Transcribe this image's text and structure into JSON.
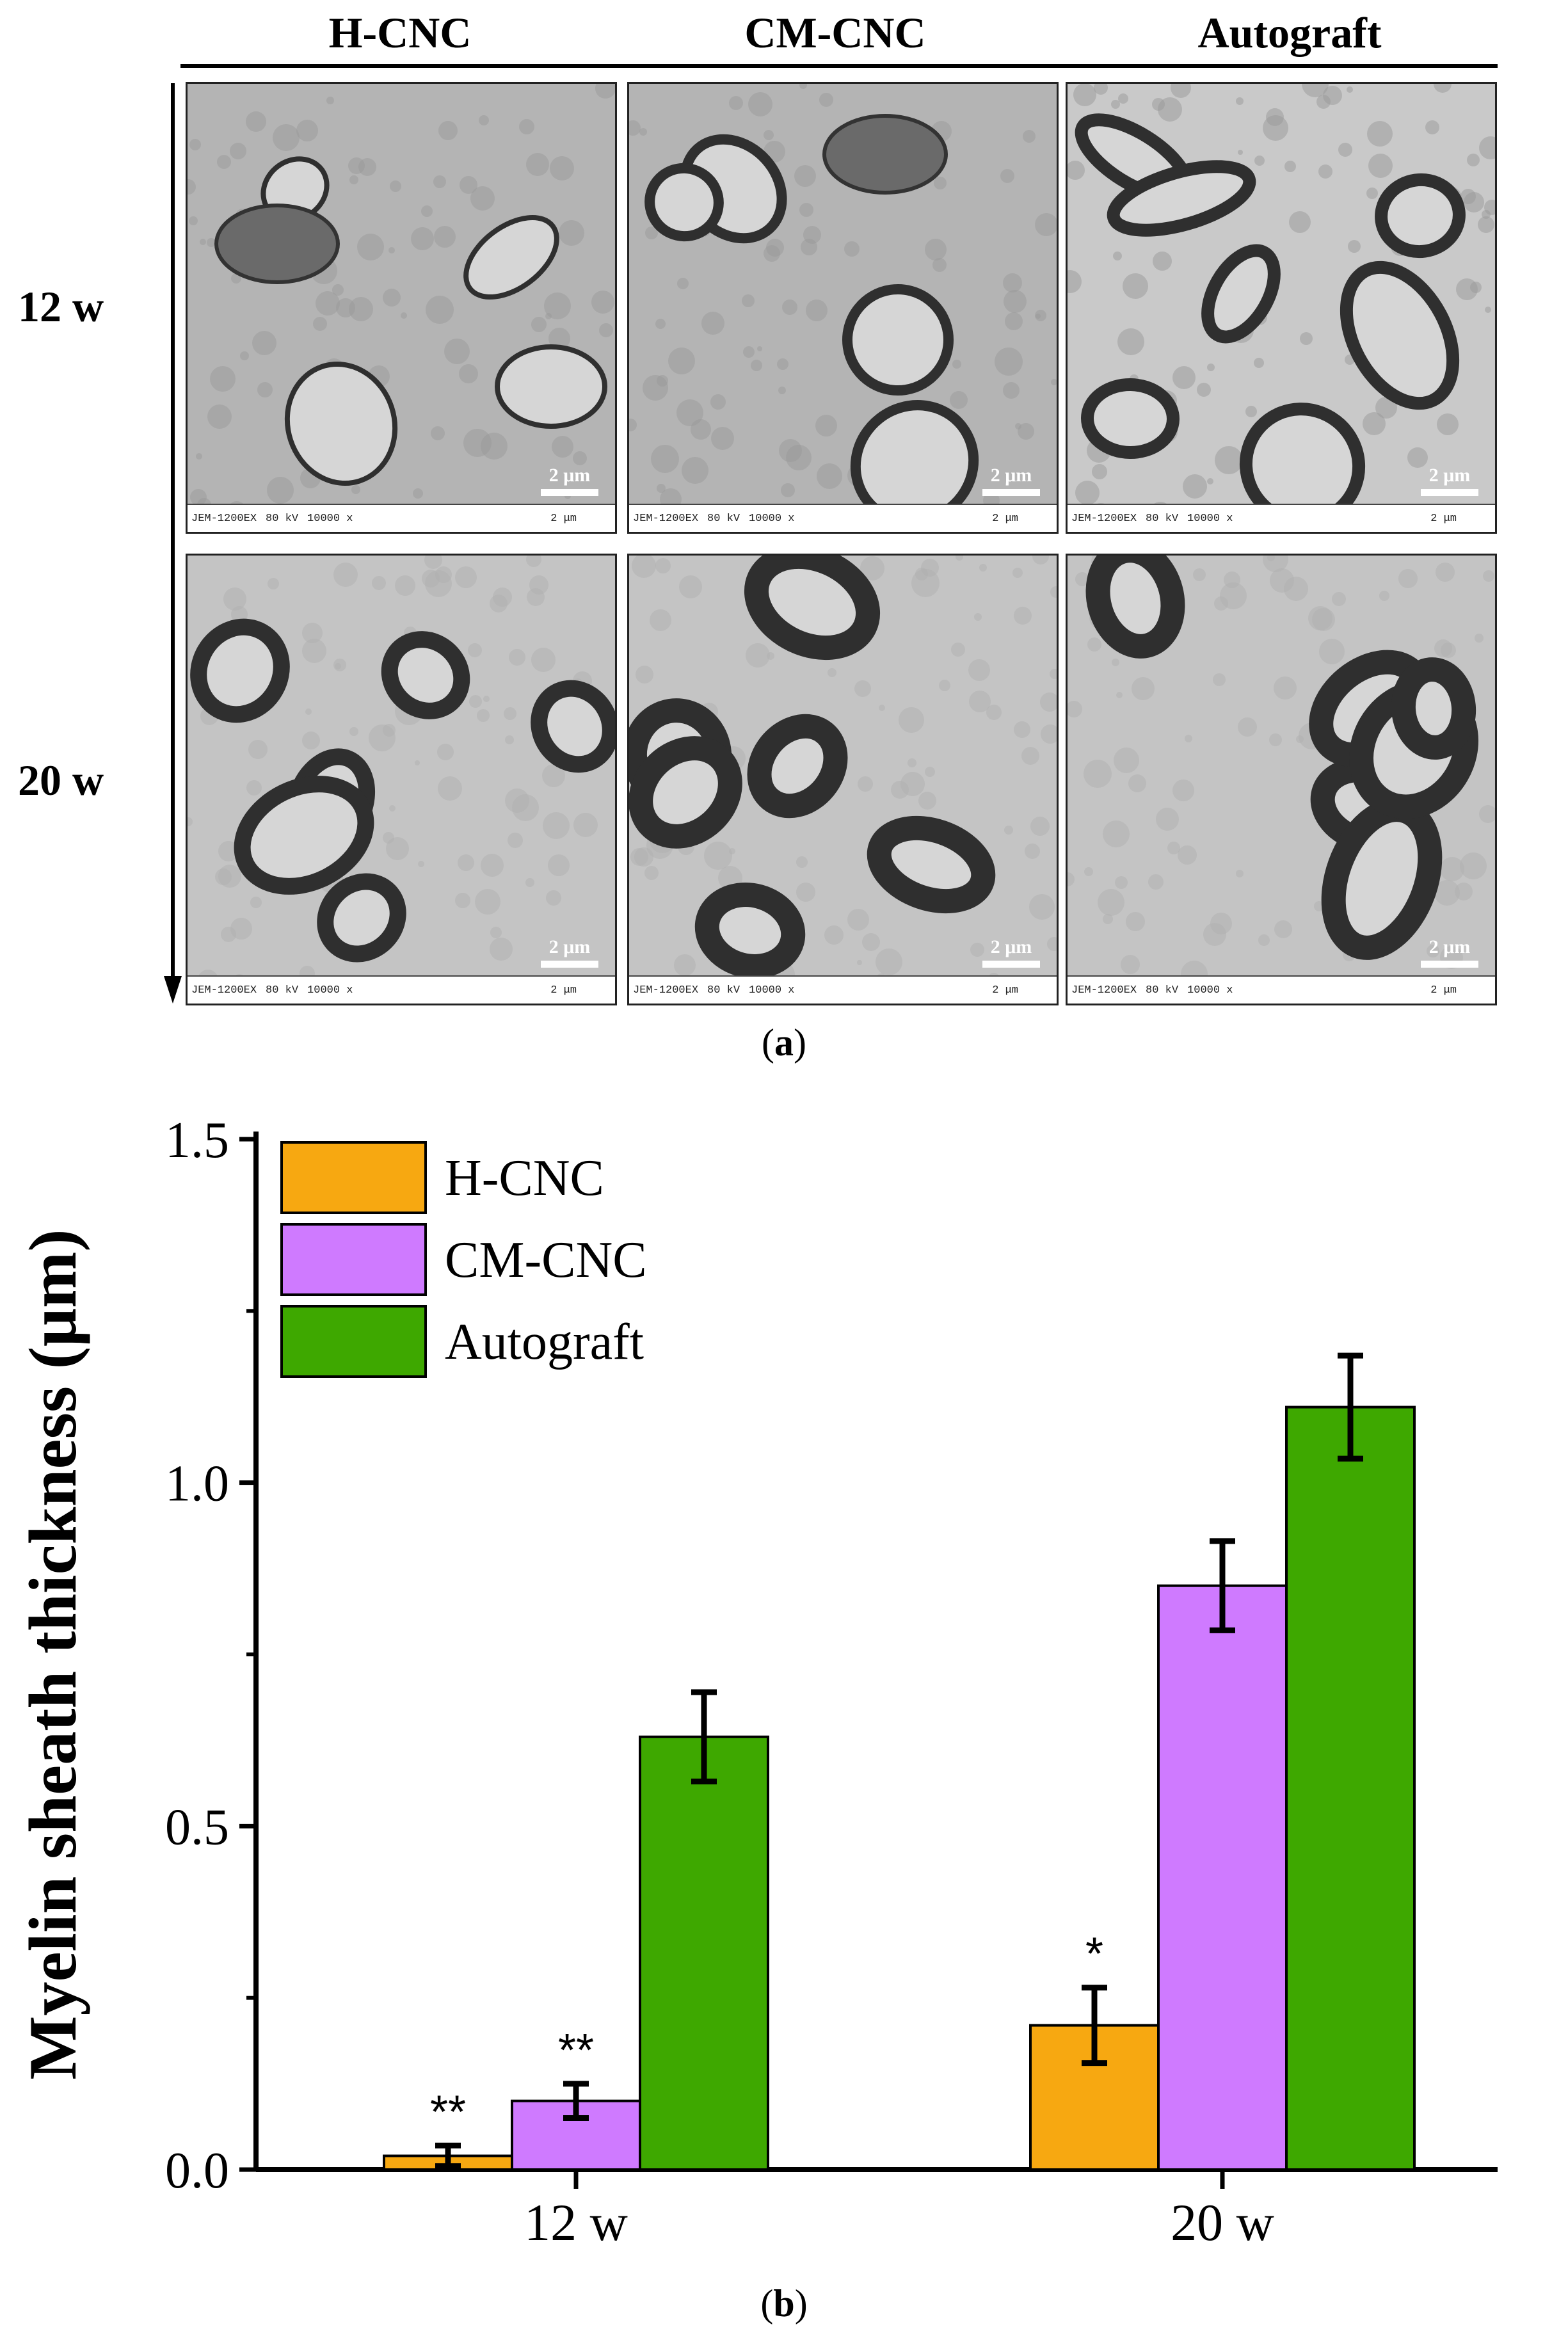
{
  "figure": {
    "panel_a": {
      "columns": [
        "H-CNC",
        "CM-CNC",
        "Autograft"
      ],
      "rows": [
        "12 w",
        "20 w"
      ],
      "scale_bar": "2 μm",
      "tem_footer": [
        "JEM-1200EX",
        "80 kV",
        "10000 x",
        "2 μm"
      ],
      "sublabel_open": "(",
      "sublabel_letter": "a",
      "sublabel_close": ")"
    },
    "panel_b": {
      "sublabel_open": "(",
      "sublabel_letter": "b",
      "sublabel_close": ")"
    }
  },
  "chart_data": {
    "type": "bar",
    "categories": [
      "12 w",
      "20 w"
    ],
    "series": [
      {
        "name": "H-CNC",
        "values": [
          0.02,
          0.21
        ],
        "errors": [
          0.015,
          0.055
        ],
        "color": "#f7a811",
        "annotations": [
          "**",
          "*"
        ]
      },
      {
        "name": "CM-CNC",
        "values": [
          0.1,
          0.85
        ],
        "errors": [
          0.025,
          0.065
        ],
        "color": "#cf7aff",
        "annotations": [
          "**",
          ""
        ]
      },
      {
        "name": "Autograft",
        "values": [
          0.63,
          1.11
        ],
        "errors": [
          0.065,
          0.075
        ],
        "color": "#3ea800",
        "annotations": [
          "",
          ""
        ]
      }
    ],
    "ylabel": "Myelin sheath thickness (μm)",
    "xlabel": "",
    "ylim": [
      0,
      1.5
    ],
    "yticks": [
      "0.0",
      "0.5",
      "1.0",
      "1.5"
    ],
    "legend_position": "top-left",
    "grid": false
  }
}
